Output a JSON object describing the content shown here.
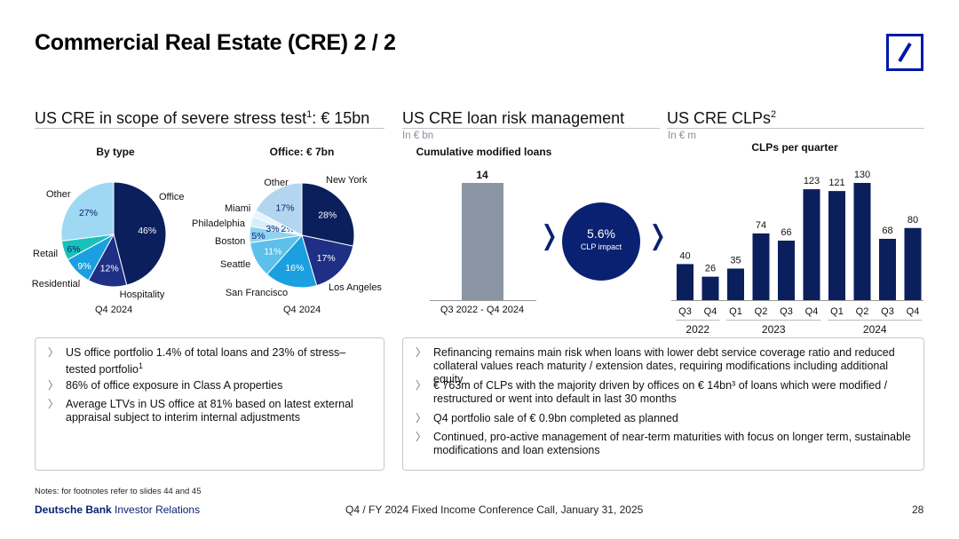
{
  "page": {
    "title": "Commercial Real Estate (CRE) 2 / 2",
    "notes": "Notes: for footnotes refer to slides 44 and 45",
    "footer_brand_bold": "Deutsche Bank",
    "footer_brand_light": "Investor Relations",
    "footer_center": "Q4 / FY 2024 Fixed Income Conference Call, January 31, 2025",
    "page_number": "28"
  },
  "sections": {
    "stress": {
      "title": "US CRE in scope of severe stress test",
      "sup": "1",
      "title_tail": ": € 15bn"
    },
    "risk": {
      "title": "US CRE loan risk management",
      "unit": "In € bn"
    },
    "clps": {
      "title": "US CRE CLPs",
      "sup": "2",
      "unit": "In € m"
    }
  },
  "chart_data": [
    {
      "type": "pie",
      "title": "By type",
      "caption": "Q4 2024",
      "slices": [
        {
          "label": "Office",
          "value": 46,
          "value_label": "46%",
          "color": "#0a1f5c"
        },
        {
          "label": "Hospitality",
          "value": 12,
          "value_label": "12%",
          "color": "#1f2f86"
        },
        {
          "label": "Residential",
          "value": 9,
          "value_label": "9%",
          "color": "#1aa0e0"
        },
        {
          "label": "Retail",
          "value": 6,
          "value_label": "6%",
          "color": "#18c1b9"
        },
        {
          "label": "Other",
          "value": 27,
          "value_label": "27%",
          "color": "#9ed8f2"
        }
      ]
    },
    {
      "type": "pie",
      "title": "Office: € 7bn",
      "caption": "Q4 2024",
      "slices": [
        {
          "label": "New York",
          "value": 28,
          "value_label": "28%",
          "color": "#0a1f5c"
        },
        {
          "label": "Los Angeles",
          "value": 17,
          "value_label": "17%",
          "color": "#1f2f86"
        },
        {
          "label": "San Francisco",
          "value": 16,
          "value_label": "16%",
          "color": "#1aa0e0"
        },
        {
          "label": "Seattle",
          "value": 11,
          "value_label": "11%",
          "color": "#5cc0ea"
        },
        {
          "label": "Boston",
          "value": 5,
          "value_label": "5%",
          "color": "#8fd3ef"
        },
        {
          "label": "Philadelphia",
          "value": 3,
          "value_label": "3%",
          "color": "#d7eef9"
        },
        {
          "label": "Miami",
          "value": 2,
          "value_label": "2%",
          "color": "#e6f4fb"
        },
        {
          "label": "Other",
          "value": 17,
          "value_label": "17%",
          "color": "#b3d6f0"
        }
      ]
    },
    {
      "type": "bar",
      "title": "Cumulative modified loans",
      "categories": [
        "Q3 2022 - Q4 2024"
      ],
      "values": [
        14
      ],
      "color": "#8a96a3",
      "ylim": [
        0,
        14
      ]
    },
    {
      "type": "bar",
      "title": "CLPs per quarter",
      "categories": [
        "Q3",
        "Q4",
        "Q1",
        "Q2",
        "Q3",
        "Q4",
        "Q1",
        "Q2",
        "Q3",
        "Q4"
      ],
      "years": [
        {
          "label": "2022",
          "from": 0,
          "to": 1
        },
        {
          "label": "2023",
          "from": 2,
          "to": 5
        },
        {
          "label": "2024",
          "from": 6,
          "to": 9
        }
      ],
      "values": [
        40,
        26,
        35,
        74,
        66,
        123,
        121,
        130,
        68,
        80
      ],
      "color": "#0a1f5c",
      "ylim": [
        0,
        130
      ]
    }
  ],
  "impact": {
    "value": "5.6%",
    "label": "CLP impact"
  },
  "bullets_left": [
    {
      "text": "US office portfolio 1.4% of total loans and 23% of stress–tested portfolio",
      "sup": "1"
    },
    {
      "text": "86% of office exposure in Class A properties",
      "sup": ""
    },
    {
      "text": "Average LTVs in US office at 81% based on latest external appraisal subject to interim internal adjustments",
      "sup": ""
    }
  ],
  "bullets_right": [
    {
      "text": "Refinancing remains main risk when loans with lower debt service coverage ratio and reduced collateral values reach maturity / extension dates, requiring modifications including additional equity"
    },
    {
      "text": "€ 763m of CLPs with the majority driven by offices on € 14bn³ of loans which were modified / restructured or went into default in last 30 months"
    },
    {
      "text": "Q4 portfolio sale of € 0.9bn completed as planned"
    },
    {
      "text": "Continued, pro-active management of near-term maturities with focus on longer term, sustainable modifications and loan extensions"
    }
  ],
  "colors": {
    "brand": "#0018a8",
    "navy": "#0a2172",
    "grey_bar": "#8a96a3"
  }
}
